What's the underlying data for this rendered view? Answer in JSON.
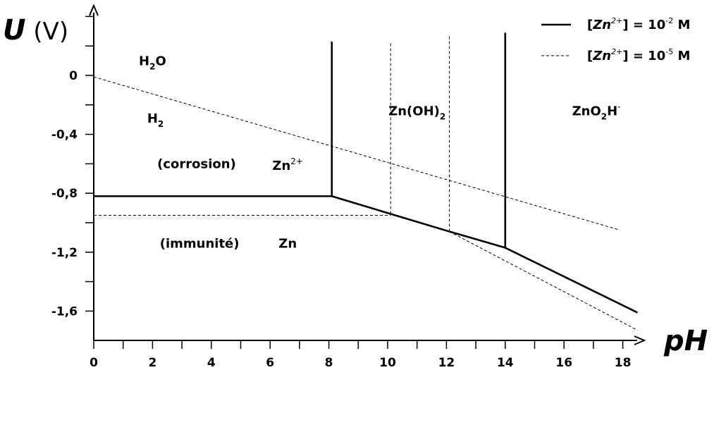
{
  "chart_data": {
    "type": "line",
    "title": "",
    "xlabel": "pH",
    "ylabel_symbol": "U",
    "ylabel_unit": "(V)",
    "xlim": [
      0,
      18.6
    ],
    "ylim": [
      -1.8,
      0.45
    ],
    "x_ticks": [
      0,
      2,
      4,
      6,
      8,
      10,
      12,
      14,
      16,
      18
    ],
    "x_tick_labels": [
      "0",
      "2",
      "4",
      "6",
      "8",
      "10",
      "12",
      "14",
      "16",
      "18"
    ],
    "x_minor_step": 1,
    "y_ticks": [
      0,
      -0.4,
      -0.8,
      -1.2,
      -1.6
    ],
    "y_tick_labels": [
      "0",
      "-0,4",
      "-0,8",
      "-1,2",
      "-1,6"
    ],
    "y_minor_step": 0.2,
    "grid": false,
    "legend_position": "top-right",
    "legend": [
      {
        "style": "solid",
        "label_pre": "[",
        "label_species": "Zn",
        "label_charge": "2+",
        "label_eq": "] = 10",
        "label_exp": "-2",
        "label_unit": " M"
      },
      {
        "style": "dashed",
        "label_pre": "[",
        "label_species": "Zn",
        "label_charge": "2+",
        "label_eq": "] = 10",
        "label_exp": "-5",
        "label_unit": " M"
      }
    ],
    "series": [
      {
        "style": "solid",
        "points": [
          [
            0,
            -0.82
          ],
          [
            8.1,
            -0.82
          ],
          [
            10.1,
            -0.94
          ],
          [
            12.1,
            -1.06
          ],
          [
            14,
            -1.17
          ],
          [
            18.5,
            -1.61
          ]
        ]
      },
      {
        "style": "solid",
        "points": [
          [
            8.1,
            -0.82
          ],
          [
            8.1,
            0.23
          ]
        ]
      },
      {
        "style": "solid",
        "points": [
          [
            14,
            -1.17
          ],
          [
            14,
            0.29
          ]
        ]
      },
      {
        "style": "dashed",
        "points": [
          [
            0,
            -0.01
          ],
          [
            17.9,
            -1.05
          ]
        ]
      },
      {
        "style": "dashed",
        "points": [
          [
            0,
            -0.95
          ],
          [
            10.1,
            -0.95
          ]
        ]
      },
      {
        "style": "dashed",
        "points": [
          [
            10.1,
            -0.94
          ],
          [
            10.1,
            0.23
          ]
        ]
      },
      {
        "style": "dashed",
        "points": [
          [
            12.1,
            -1.06
          ],
          [
            12.1,
            0.27
          ]
        ]
      },
      {
        "style": "dashed",
        "points": [
          [
            12.1,
            -1.06
          ],
          [
            18.5,
            -1.73
          ]
        ]
      }
    ],
    "annotations": [
      {
        "text": "H",
        "sub": "2",
        "after": "O",
        "x": 2.0,
        "y": 0.07
      },
      {
        "text": "H",
        "sub": "2",
        "after": "",
        "x": 2.1,
        "y": -0.32
      },
      {
        "text": "(corrosion)",
        "sub": "",
        "after": "",
        "x": 3.5,
        "y": -0.63
      },
      {
        "text": "Zn",
        "sup": "2+",
        "x": 6.6,
        "y": -0.64
      },
      {
        "text": "(immunité)",
        "sub": "",
        "after": "",
        "x": 3.6,
        "y": -1.17
      },
      {
        "text": "Zn",
        "sub": "",
        "after": "",
        "x": 6.6,
        "y": -1.17
      },
      {
        "text": "Zn(OH)",
        "sub": "2",
        "after": "",
        "x": 11.0,
        "y": -0.27
      },
      {
        "text": "ZnO",
        "sub": "2",
        "after": "H",
        "sup_after": "-",
        "x": 17.1,
        "y": -0.27
      }
    ]
  }
}
